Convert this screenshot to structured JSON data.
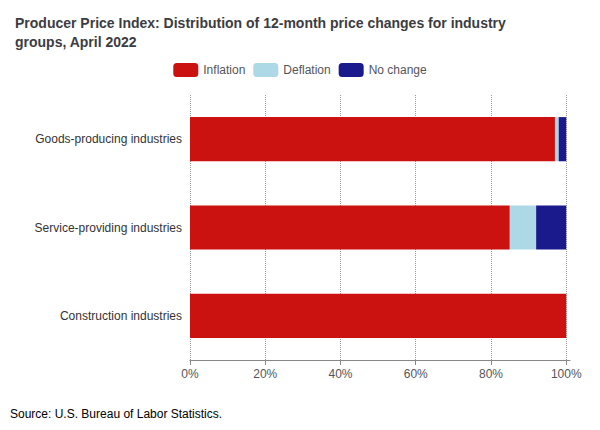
{
  "chart_data": {
    "type": "bar",
    "orientation": "horizontal",
    "stacked": true,
    "title": "Producer Price Index: Distribution of 12-month price changes for industry\ngroups, April 2022",
    "categories": [
      "Goods-producing industries",
      "Service-providing industries",
      "Construction industries"
    ],
    "series": [
      {
        "name": "Inflation",
        "color": "#CC1111",
        "values": [
          97,
          85,
          100
        ]
      },
      {
        "name": "Deflation",
        "color": "#ADD8E6",
        "values": [
          1,
          7,
          0
        ]
      },
      {
        "name": "No change",
        "color": "#1A1A8C",
        "values": [
          2,
          8,
          0
        ]
      }
    ],
    "xlim": [
      0,
      101
    ],
    "xticks": [
      {
        "value": 0,
        "label": "0%"
      },
      {
        "value": 20,
        "label": "20%"
      },
      {
        "value": 40,
        "label": "40%"
      },
      {
        "value": 60,
        "label": "60%"
      },
      {
        "value": 80,
        "label": "80%"
      },
      {
        "value": 100,
        "label": "100%"
      }
    ],
    "grid": true,
    "legend": "top",
    "annotations": [
      "Source: U.S. Bureau of Labor Statistics."
    ]
  }
}
